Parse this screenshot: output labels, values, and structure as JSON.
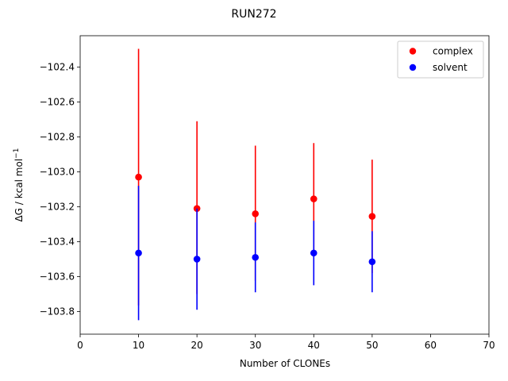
{
  "chart_data": {
    "type": "scatter",
    "title": "RUN272",
    "xlabel": "Number of CLONEs",
    "ylabel_main": "ΔG / kcal mol",
    "ylabel_sup": "−1",
    "xlim": [
      0,
      70
    ],
    "ylim": [
      -103.93,
      -102.22
    ],
    "xticks": [
      0,
      10,
      20,
      30,
      40,
      50,
      60,
      70
    ],
    "xtick_labels": [
      "0",
      "10",
      "20",
      "30",
      "40",
      "50",
      "60",
      "70"
    ],
    "yticks": [
      -103.8,
      -103.6,
      -103.4,
      -103.2,
      -103.0,
      -102.8,
      -102.6,
      -102.4
    ],
    "ytick_labels": [
      "−103.8",
      "−103.6",
      "−103.4",
      "−103.2",
      "−103.0",
      "−102.8",
      "−102.6",
      "−102.4"
    ],
    "grid": false,
    "legend_position": "top-right",
    "series": [
      {
        "name": "complex",
        "color": "#ff0000",
        "x": [
          10,
          20,
          30,
          40,
          50
        ],
        "y": [
          -103.03,
          -103.21,
          -103.24,
          -103.155,
          -103.255
        ],
        "err_low": [
          -103.765,
          -103.7,
          -103.625,
          -103.475,
          -103.58
        ],
        "err_high": [
          -102.295,
          -102.71,
          -102.85,
          -102.835,
          -102.93
        ]
      },
      {
        "name": "solvent",
        "color": "#0000ff",
        "x": [
          10,
          20,
          30,
          40,
          50
        ],
        "y": [
          -103.465,
          -103.5,
          -103.49,
          -103.465,
          -103.515
        ],
        "err_low": [
          -103.85,
          -103.79,
          -103.69,
          -103.65,
          -103.69
        ],
        "err_high": [
          -103.08,
          -103.21,
          -103.29,
          -103.28,
          -103.34
        ]
      }
    ]
  }
}
